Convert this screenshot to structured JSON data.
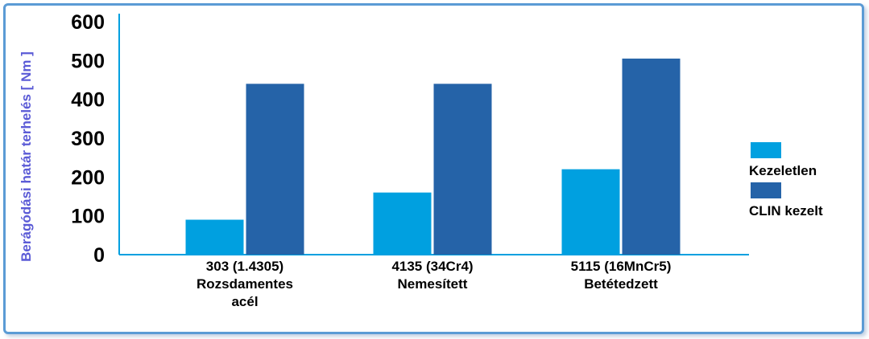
{
  "chart_data": {
    "type": "bar",
    "categories": [
      [
        "303 (1.4305)",
        "Rozsdamentes",
        "acél"
      ],
      [
        "4135 (34Cr4)",
        "Nemesített"
      ],
      [
        "5115 (16MnCr5)",
        "Betétedzett"
      ]
    ],
    "series": [
      {
        "name": "Kezeletlen",
        "values": [
          90,
          160,
          220
        ],
        "color": "#00a0e0"
      },
      {
        "name": "CLIN kezelt",
        "values": [
          440,
          440,
          505
        ],
        "color": "#2563a8"
      }
    ],
    "ylabel": "Berágódási határ terhelés [ Nm ]",
    "ylim": [
      0,
      600
    ],
    "yticks": [
      0,
      100,
      200,
      300,
      400,
      500,
      600
    ],
    "grid": false,
    "legend_position": "right"
  }
}
